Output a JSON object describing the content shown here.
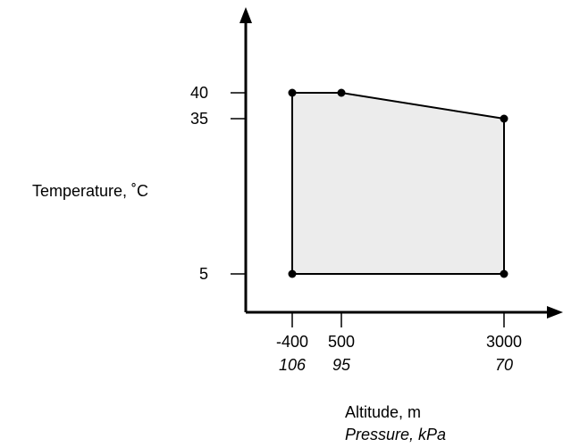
{
  "chart_data": {
    "type": "area",
    "xlabel": "Altitude, m",
    "xlabel_secondary": "Pressure, kPa",
    "ylabel": "Temperature, ˚C",
    "x_ticks": [
      {
        "value": -400,
        "label": "-400",
        "secondary": "106"
      },
      {
        "value": 500,
        "label": "500",
        "secondary": "95"
      },
      {
        "value": 3000,
        "label": "3000",
        "secondary": "70"
      }
    ],
    "y_ticks": [
      {
        "value": 40,
        "label": "40"
      },
      {
        "value": 35,
        "label": "35"
      },
      {
        "value": 5,
        "label": "5"
      }
    ],
    "region": [
      {
        "x": -400,
        "y": 5
      },
      {
        "x": -400,
        "y": 40
      },
      {
        "x": 500,
        "y": 40
      },
      {
        "x": 3000,
        "y": 35
      },
      {
        "x": 3000,
        "y": 5
      }
    ],
    "fill_color": "#ececec",
    "line_color": "#000000",
    "grid": false
  }
}
